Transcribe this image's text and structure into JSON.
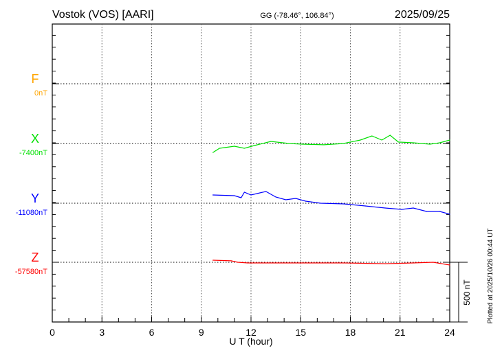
{
  "chart_data": {
    "type": "line",
    "title": "Vostok (VOS)  [AARI]",
    "subtitle": "GG (-78.46°, 106.84°)",
    "date": "2025/09/25",
    "xlabel": "U T (hour)",
    "xlim": [
      0,
      24
    ],
    "xticks": [
      "0",
      "3",
      "6",
      "9",
      "12",
      "15",
      "18",
      "21",
      "24"
    ],
    "grid": true,
    "scale_bar": {
      "value_nT": 500,
      "label": "500 nT"
    },
    "footnote": "Plotted at 2025/10/26 00:44 UT",
    "series": [
      {
        "name": "F",
        "baseline_label": "0nT",
        "baseline": 0,
        "color": "#FFA500",
        "points": []
      },
      {
        "name": "X",
        "baseline_label": "-7400nT",
        "baseline": -7400,
        "color": "#00E000",
        "points": [
          [
            9.7,
            -7475
          ],
          [
            10.1,
            -7440
          ],
          [
            11.0,
            -7423
          ],
          [
            11.6,
            -7440
          ],
          [
            12.2,
            -7417
          ],
          [
            13.2,
            -7383
          ],
          [
            14.3,
            -7400
          ],
          [
            15.1,
            -7406
          ],
          [
            16.4,
            -7411
          ],
          [
            17.6,
            -7400
          ],
          [
            18.0,
            -7388
          ],
          [
            18.6,
            -7371
          ],
          [
            19.3,
            -7337
          ],
          [
            19.9,
            -7371
          ],
          [
            20.4,
            -7331
          ],
          [
            20.9,
            -7388
          ],
          [
            21.8,
            -7394
          ],
          [
            22.8,
            -7406
          ],
          [
            23.4,
            -7394
          ],
          [
            24.0,
            -7371
          ]
        ]
      },
      {
        "name": "Y",
        "baseline_label": "-11080nT",
        "baseline": -11080,
        "color": "#0000FF",
        "points": [
          [
            9.7,
            -11011
          ],
          [
            11.0,
            -11017
          ],
          [
            11.4,
            -11034
          ],
          [
            11.6,
            -10988
          ],
          [
            12.0,
            -11011
          ],
          [
            12.9,
            -10982
          ],
          [
            13.5,
            -11028
          ],
          [
            14.1,
            -11051
          ],
          [
            14.7,
            -11040
          ],
          [
            15.3,
            -11063
          ],
          [
            16.2,
            -11080
          ],
          [
            17.6,
            -11086
          ],
          [
            18.9,
            -11103
          ],
          [
            20.1,
            -11120
          ],
          [
            21.1,
            -11132
          ],
          [
            21.8,
            -11120
          ],
          [
            22.6,
            -11149
          ],
          [
            23.4,
            -11149
          ],
          [
            24.0,
            -11172
          ]
        ]
      },
      {
        "name": "Z",
        "baseline_label": "-57580nT",
        "baseline": -57580,
        "color": "#FF0000",
        "points": [
          [
            9.7,
            -57563
          ],
          [
            10.8,
            -57568
          ],
          [
            11.2,
            -57580
          ],
          [
            11.8,
            -57586
          ],
          [
            13.5,
            -57586
          ],
          [
            15.5,
            -57586
          ],
          [
            17.6,
            -57586
          ],
          [
            20.1,
            -57592
          ],
          [
            21.8,
            -57586
          ],
          [
            23.0,
            -57580
          ],
          [
            24.0,
            -57603
          ]
        ]
      }
    ]
  }
}
